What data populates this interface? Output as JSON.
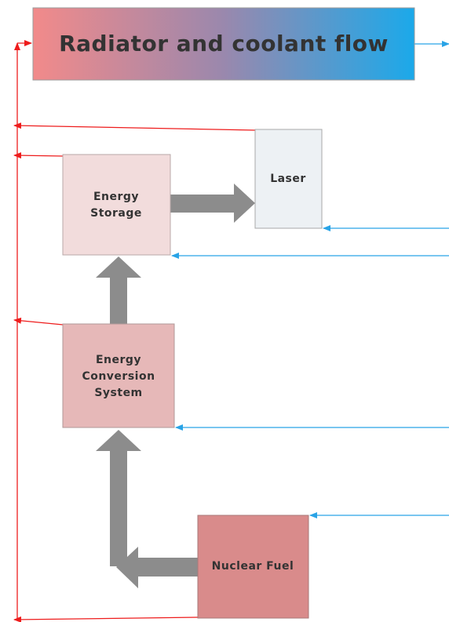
{
  "nodes": [
    {
      "lines": [
        "Radiator and coolant flow"
      ]
    },
    {
      "lines": [
        "Laser"
      ]
    },
    {
      "lines": [
        "Energy",
        "Storage"
      ]
    },
    {
      "lines": [
        "Energy",
        "Conversion",
        "System"
      ]
    },
    {
      "lines": [
        "Nuclear Fuel"
      ]
    }
  ]
}
